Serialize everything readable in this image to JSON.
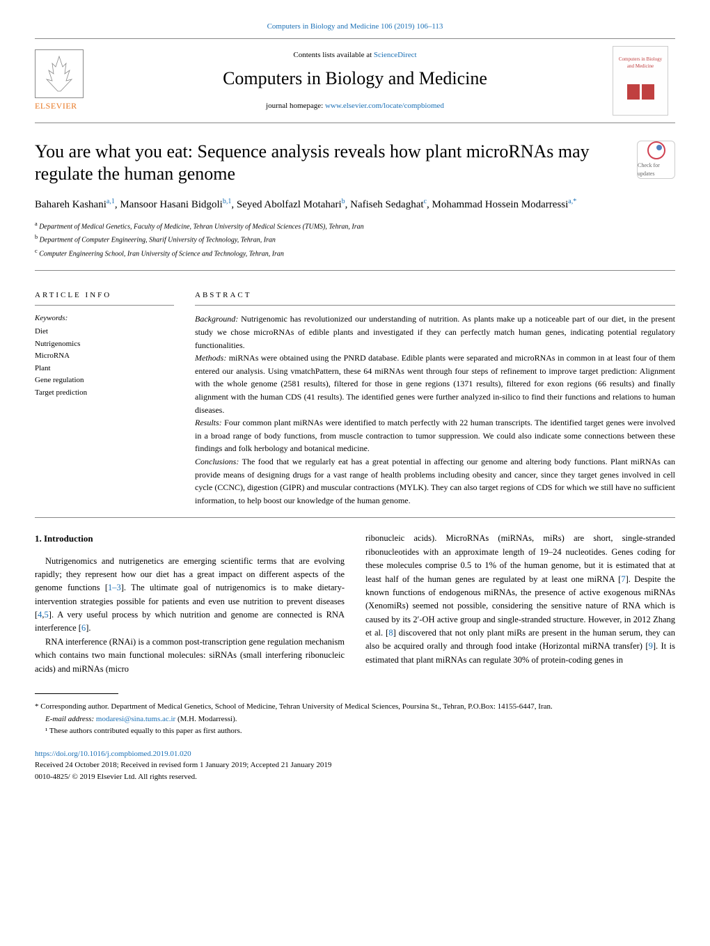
{
  "top_link": {
    "journal": "Computers in Biology and Medicine 106 (2019) 106–113",
    "url_text": "Computers in Biology and Medicine 106 (2019) 106–113"
  },
  "header": {
    "elsevier": "ELSEVIER",
    "contents_prefix": "Contents lists available at ",
    "contents_link": "ScienceDirect",
    "journal_title": "Computers in Biology and Medicine",
    "homepage_prefix": "journal homepage: ",
    "homepage_link": "www.elsevier.com/locate/compbiomed",
    "cover_text": "Computers in Biology and Medicine"
  },
  "updates_badge": "Check for updates",
  "article": {
    "title": "You are what you eat: Sequence analysis reveals how plant microRNAs may regulate the human genome",
    "authors_html": "Bahareh Kashani<sup>a,1</sup>, Mansoor Hasani Bidgoli<sup>b,1</sup>, Seyed Abolfazl Motahari<sup>b</sup>, Nafiseh Sedaghat<sup>c</sup>, Mohammad Hossein Modarressi<sup>a,*</sup>",
    "affiliations": {
      "a": "Department of Medical Genetics, Faculty of Medicine, Tehran University of Medical Sciences (TUMS), Tehran, Iran",
      "b": "Department of Computer Engineering, Sharif University of Technology, Tehran, Iran",
      "c": "Computer Engineering School, Iran University of Science and Technology, Tehran, Iran"
    }
  },
  "info": {
    "heading": "ARTICLE INFO",
    "keywords_label": "Keywords:",
    "keywords": [
      "Diet",
      "Nutrigenomics",
      "MicroRNA",
      "Plant",
      "Gene regulation",
      "Target prediction"
    ]
  },
  "abstract": {
    "heading": "ABSTRACT",
    "background_label": "Background:",
    "background": " Nutrigenomic has revolutionized our understanding of nutrition. As plants make up a noticeable part of our diet, in the present study we chose microRNAs of edible plants and investigated if they can perfectly match human genes, indicating potential regulatory functionalities.",
    "methods_label": "Methods:",
    "methods": " miRNAs were obtained using the PNRD database. Edible plants were separated and microRNAs in common in at least four of them entered our analysis. Using vmatchPattern, these 64 miRNAs went through four steps of refinement to improve target prediction: Alignment with the whole genome (2581 results), filtered for those in gene regions (1371 results), filtered for exon regions (66 results) and finally alignment with the human CDS (41 results). The identified genes were further analyzed in-silico to find their functions and relations to human diseases.",
    "results_label": "Results:",
    "results": " Four common plant miRNAs were identified to match perfectly with 22 human transcripts. The identified target genes were involved in a broad range of body functions, from muscle contraction to tumor suppression. We could also indicate some connections between these findings and folk herbology and botanical medicine.",
    "conclusions_label": "Conclusions:",
    "conclusions": " The food that we regularly eat has a great potential in affecting our genome and altering body functions. Plant miRNAs can provide means of designing drugs for a vast range of health problems including obesity and cancer, since they target genes involved in cell cycle (CCNC), digestion (GIPR) and muscular contractions (MYLK). They can also target regions of CDS for which we still have no sufficient information, to help boost our knowledge of the human genome."
  },
  "intro": {
    "heading": "1. Introduction",
    "col1_p1": "Nutrigenomics and nutrigenetics are emerging scientific terms that are evolving rapidly; they represent how our diet has a great impact on different aspects of the genome functions [",
    "cite1": "1–3",
    "col1_p1b": "]. The ultimate goal of nutrigenomics is to make dietary-intervention strategies possible for patients and even use nutrition to prevent diseases [",
    "cite2": "4",
    "cite3": "5",
    "col1_p1c": "]. A very useful process by which nutrition and genome are connected is RNA interference [",
    "cite4": "6",
    "col1_p1d": "].",
    "col1_p2": "RNA interference (RNAi) is a common post-transcription gene regulation mechanism which contains two main functional molecules: siRNAs (small interfering ribonucleic acids) and miRNAs (micro",
    "col2_p1a": "ribonucleic acids). MicroRNAs (miRNAs, miRs) are short, single-stranded ribonucleotides with an approximate length of 19–24 nucleotides. Genes coding for these molecules comprise 0.5 to 1% of the human genome, but it is estimated that at least half of the human genes are regulated by at least one miRNA [",
    "cite5": "7",
    "col2_p1b": "]. Despite the known functions of endogenous miRNAs, the presence of active exogenous miRNAs (XenomiRs) seemed not possible, considering the sensitive nature of RNA which is caused by its 2′-OH active group and single-stranded structure. However, in 2012 Zhang et al. [",
    "cite6": "8",
    "col2_p1c": "] discovered that not only plant miRs are present in the human serum, they can also be acquired orally and through food intake (Horizontal miRNA transfer) [",
    "cite7": "9",
    "col2_p1d": "]. It is estimated that plant miRNAs can regulate 30% of protein-coding genes in"
  },
  "footnotes": {
    "corresponding": "* Corresponding author. Department of Medical Genetics, School of Medicine, Tehran University of Medical Sciences, Poursina St., Tehran, P.O.Box: 14155-6447, Iran.",
    "email_label": "E-mail address: ",
    "email": "modaresi@sina.tums.ac.ir",
    "email_suffix": " (M.H. Modarressi).",
    "equal": "¹ These authors contributed equally to this paper as first authors."
  },
  "footer": {
    "doi": "https://doi.org/10.1016/j.compbiomed.2019.01.020",
    "received": "Received 24 October 2018; Received in revised form 1 January 2019; Accepted 21 January 2019",
    "copyright": "0010-4825/ © 2019 Elsevier Ltd. All rights reserved."
  },
  "colors": {
    "link": "#1a6fb5",
    "elsevier_orange": "#e87722",
    "badge_red": "#d04050",
    "badge_blue": "#5080c0",
    "cover_red": "#c04040",
    "border": "#888888"
  },
  "typography": {
    "body_font": "Georgia, Times New Roman, serif",
    "body_size": 13,
    "title_size": 26,
    "journal_title_size": 26,
    "authors_size": 15,
    "abstract_size": 12,
    "footnote_size": 11
  }
}
